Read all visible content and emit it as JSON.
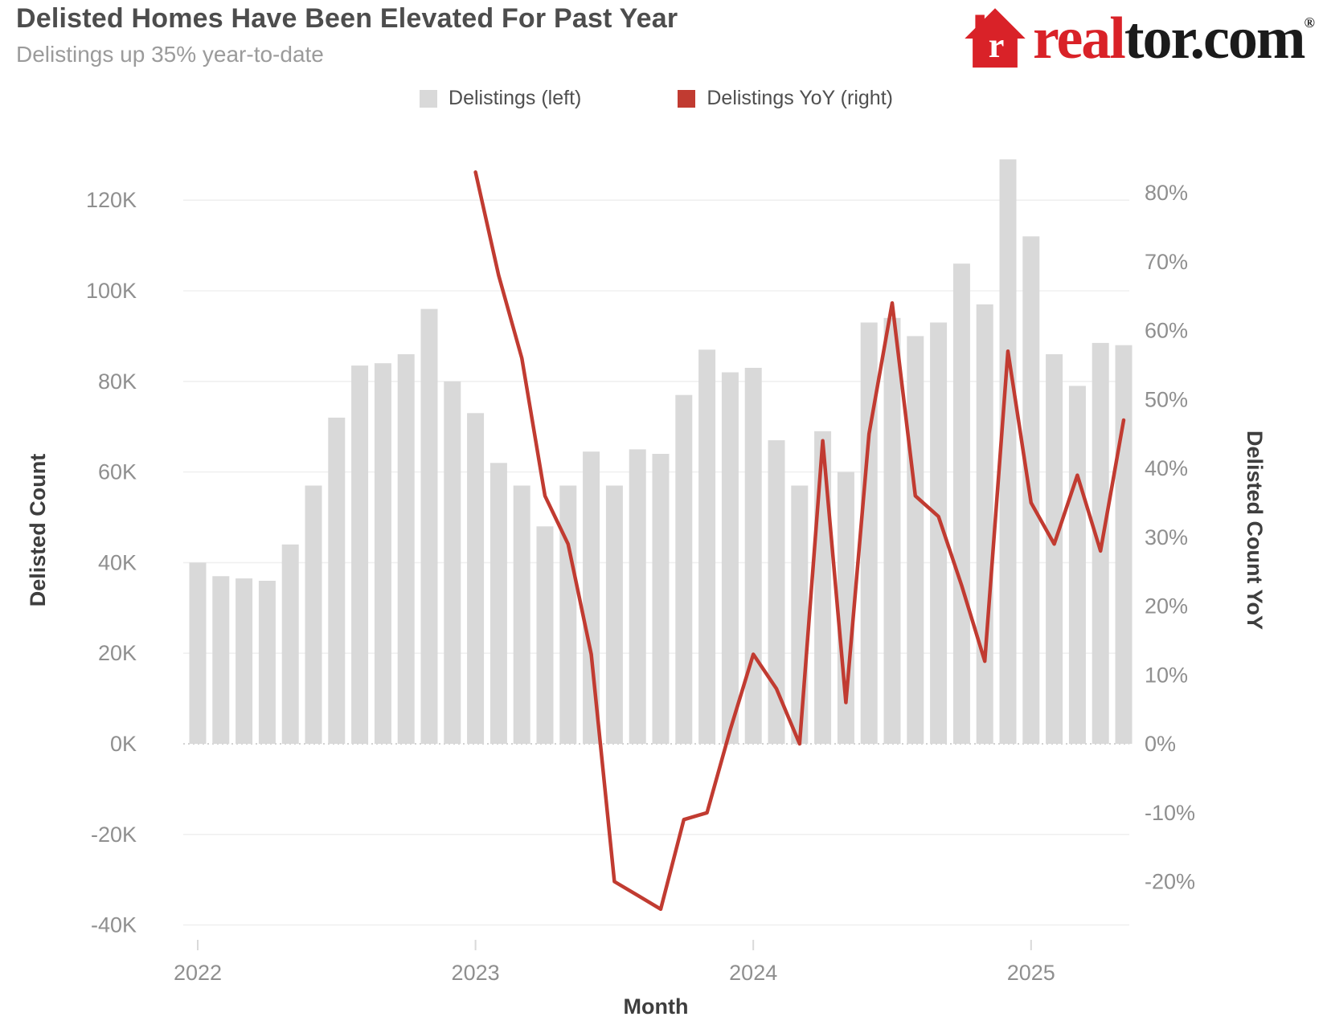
{
  "header": {
    "title": "Delisted Homes Have Been Elevated For Past Year",
    "subtitle": "Delistings up 35% year-to-date"
  },
  "logo": {
    "text_real": "real",
    "text_tor": "tor.com",
    "registered_mark": "®",
    "house_red": "#d92228",
    "text_dark": "#1b1b1b"
  },
  "legend": [
    {
      "label": "Delistings (left)",
      "color": "#d9d9d9"
    },
    {
      "label": "Delistings YoY (right)",
      "color": "#c13b31"
    }
  ],
  "axes": {
    "left": {
      "title": "Delisted Count",
      "tick_labels": [
        "120K",
        "100K",
        "80K",
        "60K",
        "40K",
        "20K",
        "0K",
        "-20K",
        "-40K"
      ]
    },
    "right": {
      "title": "Delisted Count YoY",
      "tick_labels": [
        "80%",
        "70%",
        "60%",
        "50%",
        "40%",
        "30%",
        "20%",
        "10%",
        "0%",
        "-10%",
        "-20%"
      ]
    },
    "x": {
      "title": "Month",
      "year_labels": [
        "2022",
        "2023",
        "2024",
        "2025"
      ]
    }
  },
  "chart_data": {
    "type": "combo bar+line",
    "title": "Delisted Homes Have Been Elevated For Past Year",
    "subtitle": "Delistings up 35% year-to-date",
    "xlabel": "Month",
    "ylabel_left": "Delisted Count",
    "ylabel_right": "Delisted Count YoY",
    "grid": "horizontal gridlines at left-axis ticks, zero line dotted",
    "legend_position": "top-center",
    "categories": [
      "2022-01",
      "2022-02",
      "2022-03",
      "2022-04",
      "2022-05",
      "2022-06",
      "2022-07",
      "2022-08",
      "2022-09",
      "2022-10",
      "2022-11",
      "2022-12",
      "2023-01",
      "2023-02",
      "2023-03",
      "2023-04",
      "2023-05",
      "2023-06",
      "2023-07",
      "2023-08",
      "2023-09",
      "2023-10",
      "2023-11",
      "2023-12",
      "2024-01",
      "2024-02",
      "2024-03",
      "2024-04",
      "2024-05",
      "2024-06",
      "2024-07",
      "2024-08",
      "2024-09",
      "2024-10",
      "2024-11",
      "2024-12",
      "2025-01",
      "2025-02",
      "2025-03",
      "2025-04",
      "2025-05"
    ],
    "left_axis_ticks_thousands": [
      -40,
      -20,
      0,
      20,
      40,
      60,
      80,
      100,
      120
    ],
    "right_axis_ticks_percent": [
      -20,
      -10,
      0,
      10,
      20,
      30,
      40,
      50,
      60,
      70,
      80
    ],
    "ylim_left_thousands": [
      -45,
      133
    ],
    "ylim_right_percent": [
      -27,
      85
    ],
    "series": [
      {
        "name": "Delistings (left)",
        "type": "bar",
        "axis": "left",
        "unit": "thousands",
        "color": "#d9d9d9",
        "values": [
          40,
          37,
          36.5,
          36,
          44,
          57,
          72,
          83.5,
          84,
          86,
          96,
          80,
          73,
          62,
          57,
          48,
          57,
          64.5,
          57,
          65,
          64,
          77,
          87,
          82,
          83,
          67,
          57,
          69,
          60,
          93,
          94,
          90,
          93,
          106,
          97,
          129,
          112,
          86,
          79,
          88.5,
          88
        ]
      },
      {
        "name": "Delistings YoY (right)",
        "type": "line",
        "axis": "right",
        "unit": "percent",
        "color": "#c13b31",
        "values": [
          null,
          null,
          null,
          null,
          null,
          null,
          null,
          null,
          null,
          null,
          null,
          null,
          83,
          68,
          56,
          36,
          29,
          13,
          -20,
          -22,
          -24,
          -11,
          -10,
          2,
          13,
          8,
          0,
          44,
          6,
          45,
          64,
          36,
          33,
          23,
          12,
          57,
          35,
          29,
          39,
          28,
          47
        ]
      }
    ]
  }
}
